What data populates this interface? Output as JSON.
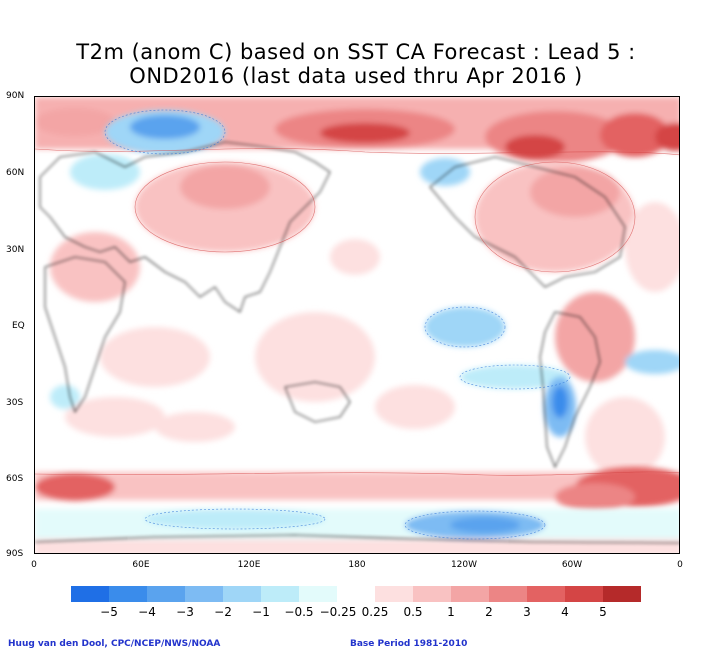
{
  "title": {
    "line1": "T2m (anom C) based on SST CA Forecast : Lead 5 :",
    "line2": "OND2016 (last data used thru Apr 2016 )"
  },
  "axes": {
    "lat_labels": [
      "90N",
      "60N",
      "30N",
      "EQ",
      "30S",
      "60S",
      "90S"
    ],
    "lon_labels": [
      "0",
      "60E",
      "120E",
      "180",
      "120W",
      "60W",
      "0"
    ]
  },
  "colorbar": {
    "labels": [
      "−5",
      "−4",
      "−3",
      "−2",
      "−1",
      "−0.5",
      "−0.25",
      "0.25",
      "0.5",
      "1",
      "2",
      "3",
      "4",
      "5"
    ],
    "colors": [
      "#1f6fe6",
      "#3a8ceb",
      "#5aa3ee",
      "#7dbbf3",
      "#9fd6f7",
      "#bdecf9",
      "#e3fbfb",
      "#ffffff",
      "#fde0e0",
      "#f9c2c2",
      "#f3a5a5",
      "#ec8585",
      "#e36262",
      "#d44545",
      "#b52a2a"
    ]
  },
  "credits": {
    "left": "Huug van den Dool, CPC/NCEP/NWS/NOAA",
    "right": "Base Period 1981-2010"
  }
}
